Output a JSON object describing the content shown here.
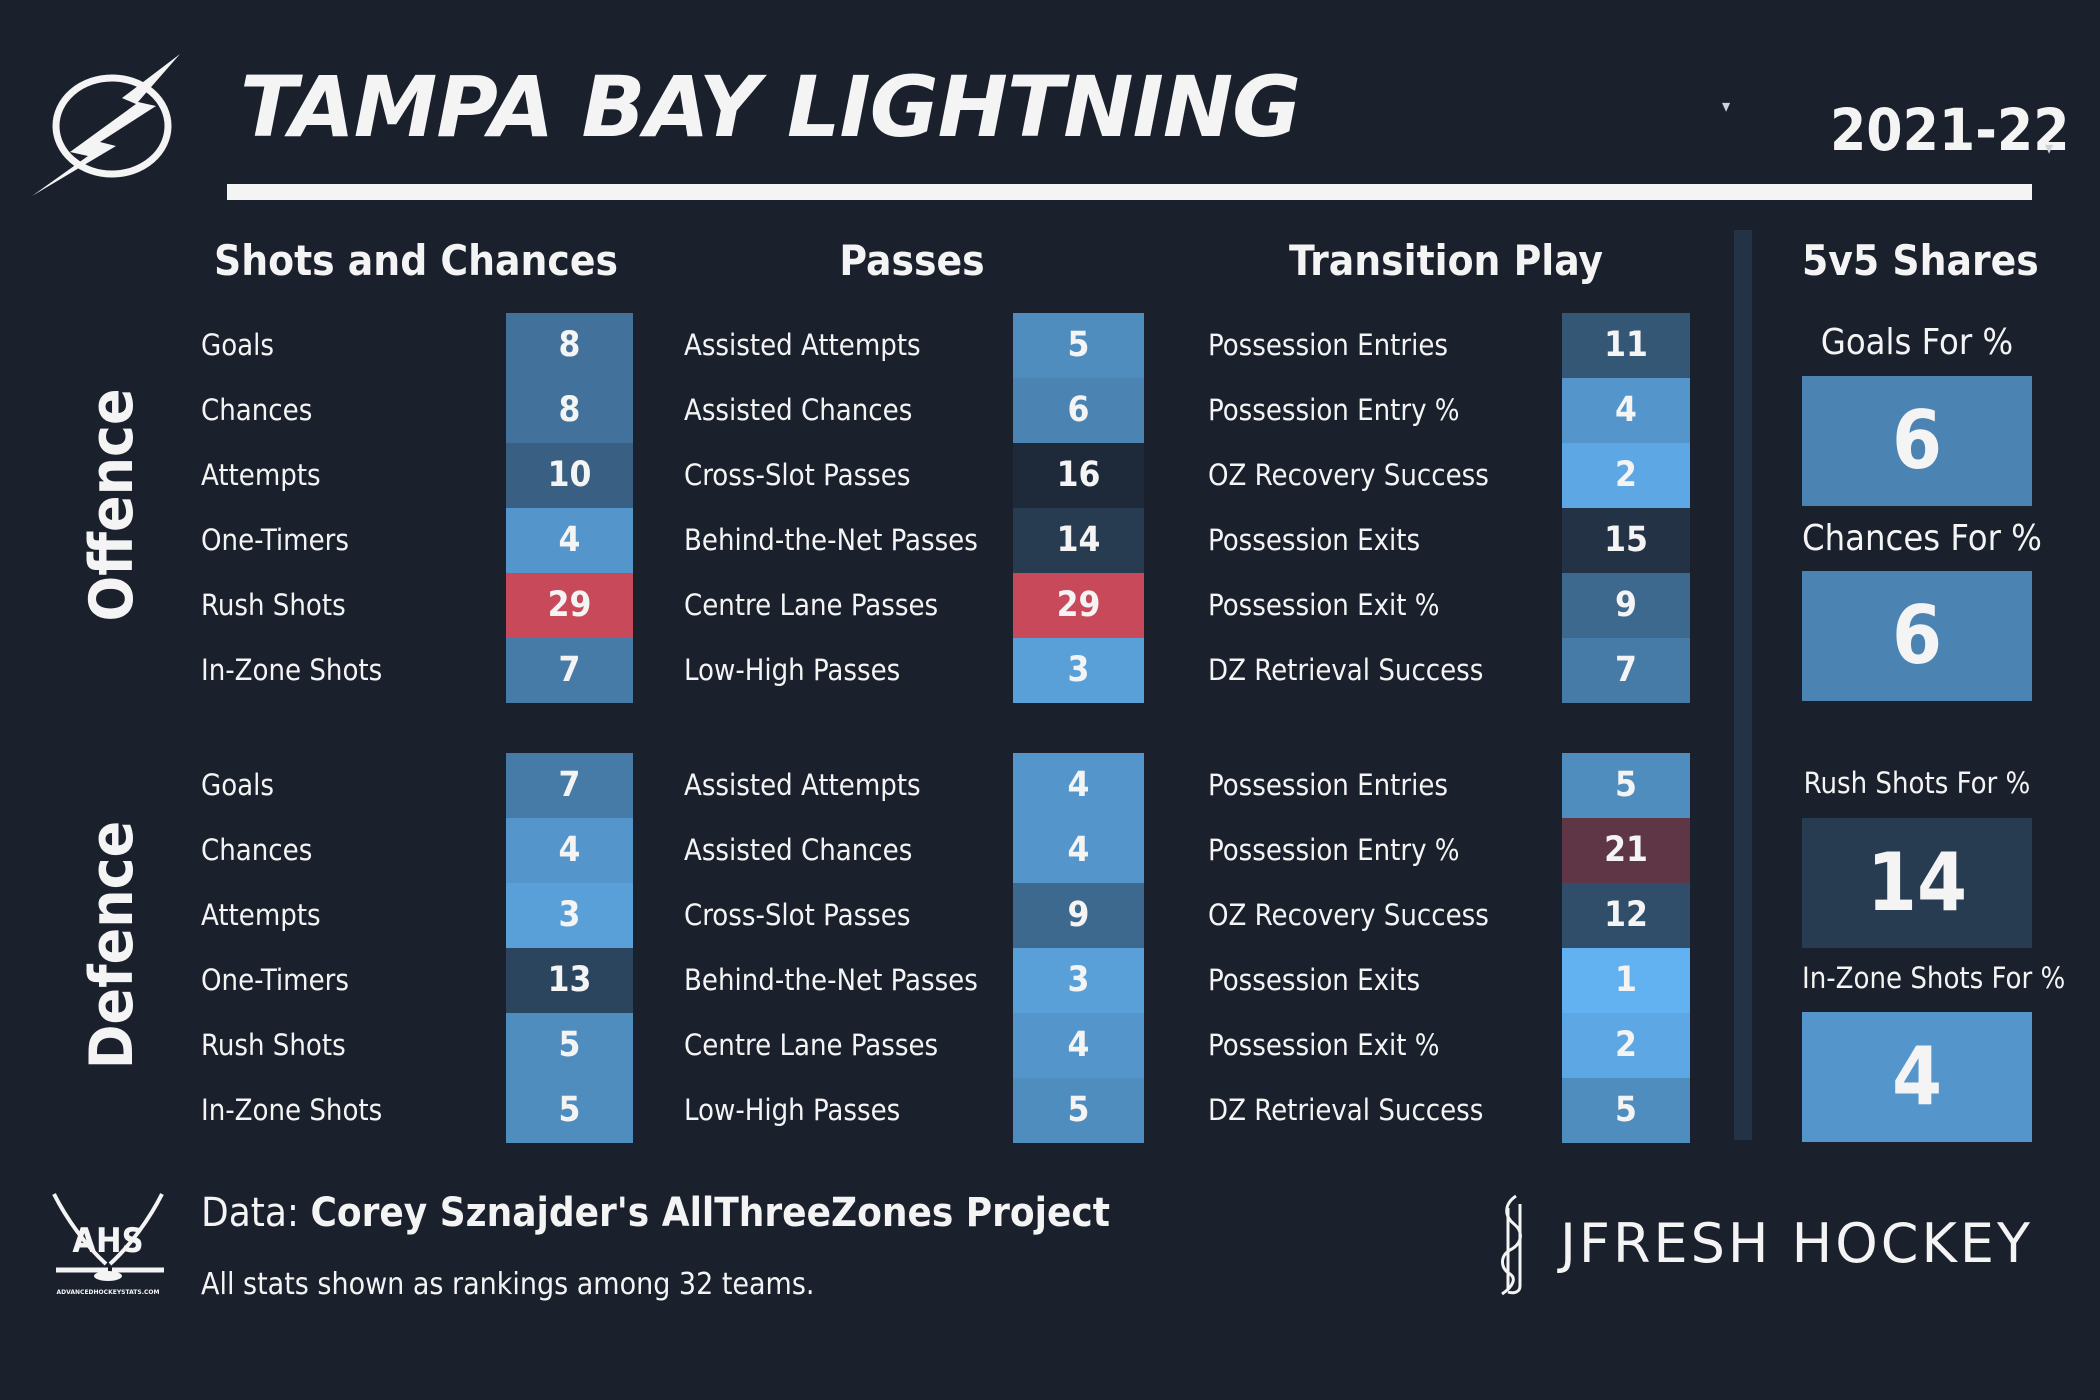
{
  "header": {
    "team": "TAMPA BAY LIGHTNING",
    "team_caret": "▾",
    "season": "2021-22",
    "season_caret": "▾"
  },
  "sections": {
    "shots": "Shots and Chances",
    "passes": "Passes",
    "transition": "Transition Play",
    "shares": "5v5 Shares"
  },
  "side_labels": {
    "offence": "Offence",
    "defence": "Defence"
  },
  "offence": {
    "shots": [
      [
        "Goals",
        "8"
      ],
      [
        "Chances",
        "8"
      ],
      [
        "Attempts",
        "10"
      ],
      [
        "One-Timers",
        "4"
      ],
      [
        "Rush Shots",
        "29"
      ],
      [
        "In-Zone Shots",
        "7"
      ]
    ],
    "passes": [
      [
        "Assisted Attempts",
        "5"
      ],
      [
        "Assisted Chances",
        "6"
      ],
      [
        "Cross-Slot Passes",
        "16"
      ],
      [
        "Behind-the-Net Passes",
        "14"
      ],
      [
        "Centre Lane Passes",
        "29"
      ],
      [
        "Low-High Passes",
        "3"
      ]
    ],
    "transition": [
      [
        "Possession Entries",
        "11"
      ],
      [
        "Possession Entry %",
        "4"
      ],
      [
        "OZ Recovery Success",
        "2"
      ],
      [
        "Possession Exits",
        "15"
      ],
      [
        "Possession Exit %",
        "9"
      ],
      [
        "DZ Retrieval Success",
        "7"
      ]
    ]
  },
  "defence": {
    "shots": [
      [
        "Goals",
        "7"
      ],
      [
        "Chances",
        "4"
      ],
      [
        "Attempts",
        "3"
      ],
      [
        "One-Timers",
        "13"
      ],
      [
        "Rush Shots",
        "5"
      ],
      [
        "In-Zone Shots",
        "5"
      ]
    ],
    "passes": [
      [
        "Assisted Attempts",
        "4"
      ],
      [
        "Assisted Chances",
        "4"
      ],
      [
        "Cross-Slot Passes",
        "9"
      ],
      [
        "Behind-the-Net Passes",
        "3"
      ],
      [
        "Centre Lane Passes",
        "4"
      ],
      [
        "Low-High Passes",
        "5"
      ]
    ],
    "transition": [
      [
        "Possession Entries",
        "5"
      ],
      [
        "Possession Entry %",
        "21"
      ],
      [
        "OZ Recovery Success",
        "12"
      ],
      [
        "Possession Exits",
        "1"
      ],
      [
        "Possession Exit %",
        "2"
      ],
      [
        "DZ Retrieval Success",
        "5"
      ]
    ]
  },
  "shares": [
    {
      "title": "Goals For %",
      "value": "6"
    },
    {
      "title": "Chances For %",
      "value": "6"
    },
    {
      "title": "Rush Shots For %",
      "value": "14"
    },
    {
      "title": "In-Zone Shots For %",
      "value": "4"
    }
  ],
  "footer": {
    "data_prefix": "Data: ",
    "data_source": "Corey Sznajder's AllThreeZones Project",
    "note": "All stats shown as rankings among 32 teams.",
    "brand": "JFRESH HOCKEY",
    "ahs_text": "AHS",
    "ahs_url": "ADVANCEDHOCKEYSTATS.COM"
  },
  "colors": {
    "background": "#1a202c",
    "best": "#62b1f0",
    "worst": "#c84a5a",
    "mid": "#1e2a39"
  }
}
